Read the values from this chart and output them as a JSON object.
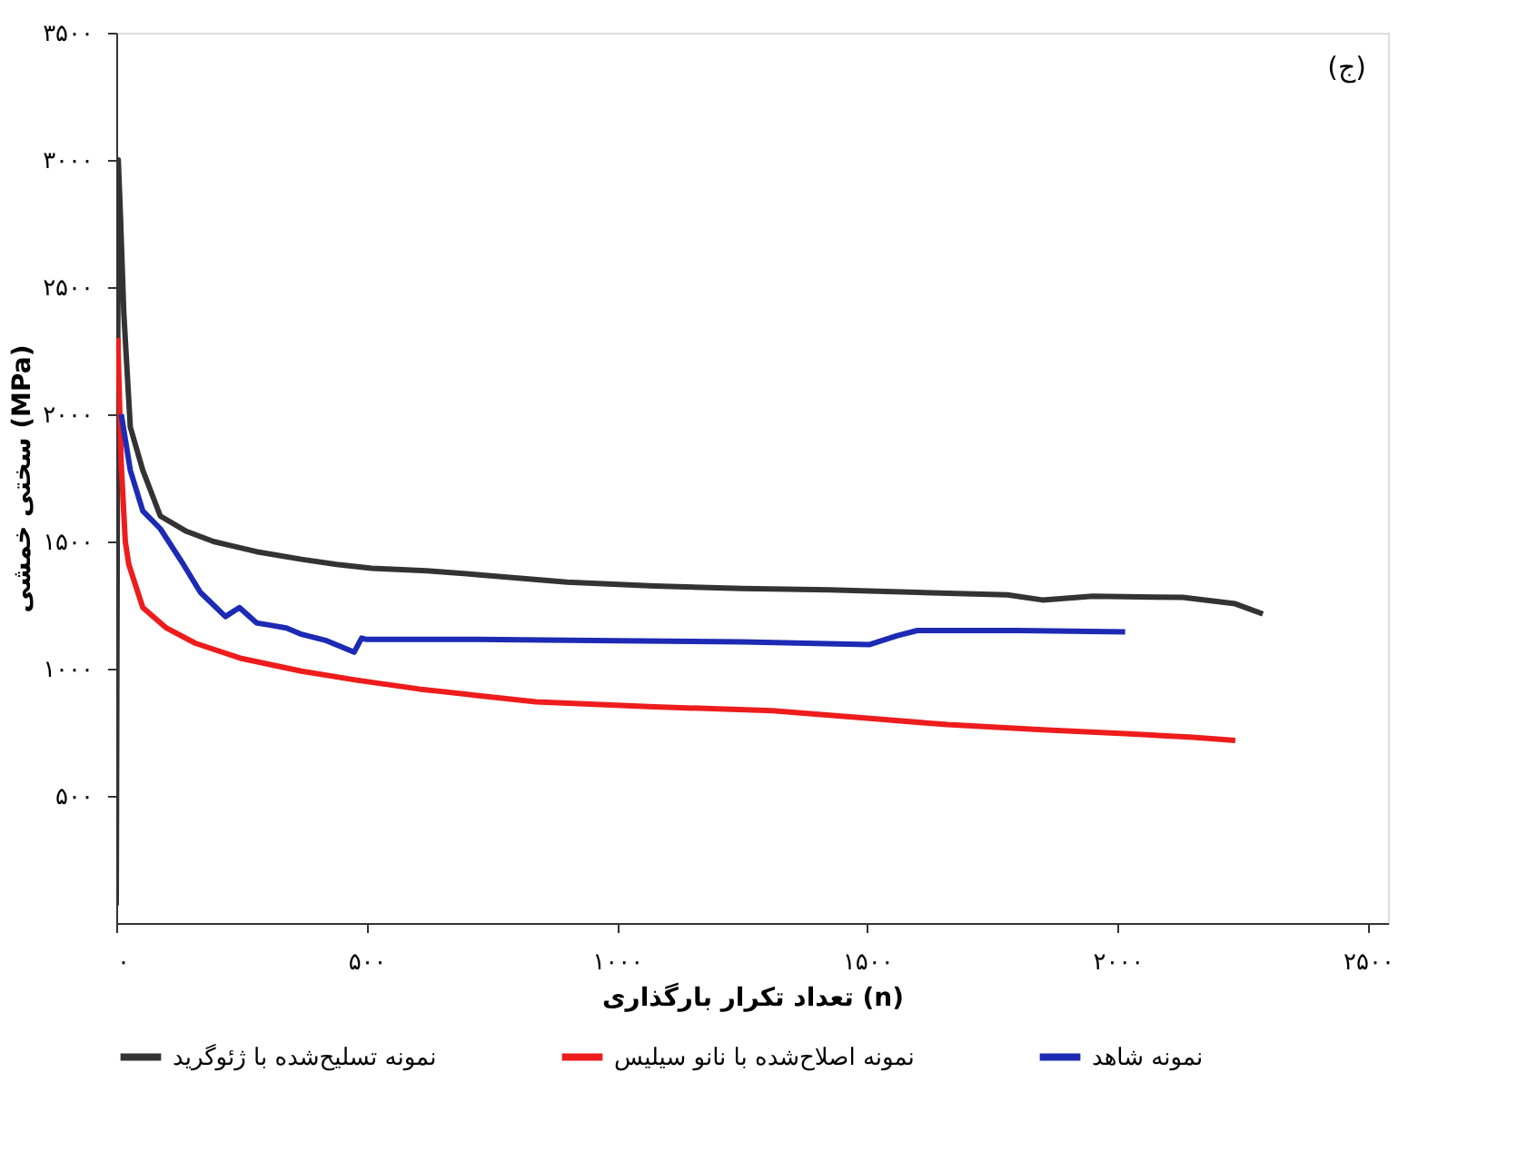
{
  "chart_data": {
    "type": "line",
    "xlabel": "تعداد تکرار بارگذاری (n)",
    "ylabel": "سختی خمشی (MPa)",
    "annotations": [
      "(ج)"
    ],
    "xlim": [
      0,
      2540
    ],
    "ylim": [
      0,
      3500
    ],
    "xticks": [
      {
        "value": 0,
        "label": "۰"
      },
      {
        "value": 500,
        "label": "۵۰۰"
      },
      {
        "value": 1000,
        "label": "۱۰۰۰"
      },
      {
        "value": 1500,
        "label": "۱۵۰۰"
      },
      {
        "value": 2000,
        "label": "۲۰۰۰"
      },
      {
        "value": 2500,
        "label": "۲۵۰۰"
      }
    ],
    "yticks": [
      {
        "value": 500,
        "label": "۵۰۰"
      },
      {
        "value": 1000,
        "label": "۱۰۰۰"
      },
      {
        "value": 1500,
        "label": "۱۵۰۰"
      },
      {
        "value": 2000,
        "label": "۲۰۰۰"
      },
      {
        "value": 2500,
        "label": "۲۵۰۰"
      },
      {
        "value": 3000,
        "label": "۳۰۰۰"
      },
      {
        "value": 3500,
        "label": "۳۵۰۰"
      }
    ],
    "grid": false,
    "legend": "bottom",
    "marker": "none",
    "line_style": "solid",
    "series": [
      {
        "name": "نمونه تسلیح‌شده با ژئوگرید",
        "color": "#333333",
        "x": [
          0,
          4,
          8,
          15,
          28,
          53,
          88,
          140,
          194,
          280,
          370,
          440,
          510,
          620,
          720,
          900,
          1075,
          1250,
          1425,
          1600,
          1780,
          1850,
          1950,
          2130,
          2235,
          2290
        ],
        "values": [
          70,
          3000,
          2800,
          2400,
          1950,
          1780,
          1600,
          1540,
          1500,
          1460,
          1430,
          1410,
          1395,
          1385,
          1370,
          1340,
          1325,
          1315,
          1310,
          1300,
          1290,
          1270,
          1285,
          1280,
          1255,
          1215
        ]
      },
      {
        "name": "نمونه اصلاح‌شده با نانو سیلیس",
        "color": "#ee1c1c",
        "x": [
          3,
          10,
          18,
          25,
          53,
          100,
          158,
          250,
          370,
          480,
          605,
          720,
          838,
          1075,
          1310,
          1500,
          1660,
          1850,
          2015,
          2150,
          2235
        ],
        "values": [
          2300,
          1800,
          1500,
          1410,
          1240,
          1160,
          1100,
          1040,
          990,
          955,
          920,
          895,
          870,
          850,
          835,
          805,
          780,
          760,
          745,
          730,
          718
        ]
      },
      {
        "name": "نمونه شاهد",
        "color": "#1c2ab4",
        "x": [
          10,
          28,
          53,
          88,
          134,
          168,
          218,
          246,
          280,
          310,
          340,
          370,
          420,
          475,
          490,
          500,
          720,
          1000,
          1250,
          1505,
          1560,
          1600,
          1800,
          2015
        ],
        "values": [
          2000,
          1780,
          1620,
          1550,
          1410,
          1300,
          1205,
          1240,
          1180,
          1170,
          1160,
          1135,
          1110,
          1065,
          1120,
          1115,
          1115,
          1110,
          1105,
          1095,
          1130,
          1150,
          1150,
          1145
        ]
      }
    ]
  }
}
